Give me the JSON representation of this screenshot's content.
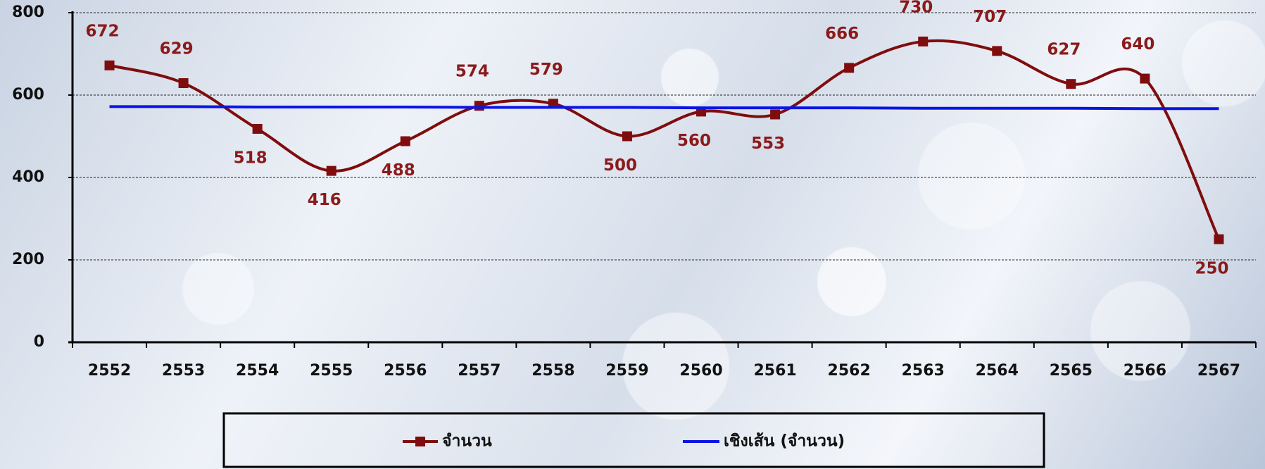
{
  "chart_data": {
    "type": "line",
    "categories": [
      "2552",
      "2553",
      "2554",
      "2555",
      "2556",
      "2557",
      "2558",
      "2559",
      "2560",
      "2561",
      "2562",
      "2563",
      "2564",
      "2565",
      "2566",
      "2567"
    ],
    "series": [
      {
        "name": "จำนวน",
        "color": "#7f0d0d",
        "values": [
          672,
          629,
          518,
          416,
          488,
          574,
          579,
          500,
          560,
          553,
          666,
          730,
          707,
          627,
          640,
          250
        ]
      },
      {
        "name": "เชิงเส้น (จำนวน)",
        "color": "#0a14e6",
        "values": [
          572,
          572,
          571,
          571,
          571,
          570,
          570,
          570,
          569,
          569,
          569,
          568,
          568,
          568,
          567,
          567
        ]
      }
    ],
    "ylim": [
      0,
      800
    ],
    "yticks": [
      0,
      200,
      400,
      600,
      800
    ],
    "grid": true
  }
}
